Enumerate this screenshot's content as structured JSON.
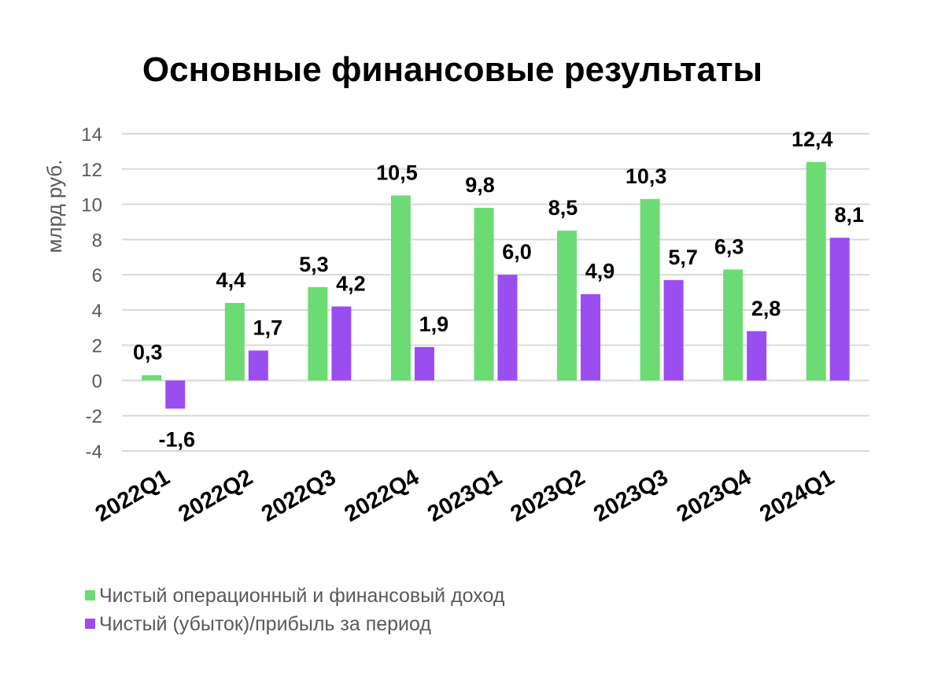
{
  "chart_data": {
    "type": "bar",
    "title": "Основные финансовые результаты",
    "ylabel": "млрд руб.",
    "xlabel": "",
    "ylim": [
      -4,
      14
    ],
    "yticks": [
      "-4",
      "-2",
      "0",
      "2",
      "4",
      "6",
      "8",
      "10",
      "12",
      "14"
    ],
    "ytick_values": [
      -4,
      -2,
      0,
      2,
      4,
      6,
      8,
      10,
      12,
      14
    ],
    "grid": true,
    "legend_position": "bottom-left",
    "categories": [
      "2022Q1",
      "2022Q2",
      "2022Q3",
      "2022Q4",
      "2023Q1",
      "2023Q2",
      "2023Q3",
      "2023Q4",
      "2024Q1"
    ],
    "series": [
      {
        "name": "Чистый операционный и финансовый доход",
        "color": "#6ddb73",
        "values": [
          0.3,
          4.4,
          5.3,
          10.5,
          9.8,
          8.5,
          10.3,
          6.3,
          12.4
        ],
        "labels": [
          "0,3",
          "4,4",
          "5,3",
          "10,5",
          "9,8",
          "8,5",
          "10,3",
          "6,3",
          "12,4"
        ]
      },
      {
        "name": "Чистый (убыток)/прибыль за период",
        "color": "#9a4ef0",
        "values": [
          -1.6,
          1.7,
          4.2,
          1.9,
          6.0,
          4.9,
          5.7,
          2.8,
          8.1
        ],
        "labels": [
          "-1,6",
          "1,7",
          "4,2",
          "1,9",
          "6,0",
          "4,9",
          "5,7",
          "2,8",
          "8,1"
        ]
      }
    ]
  }
}
